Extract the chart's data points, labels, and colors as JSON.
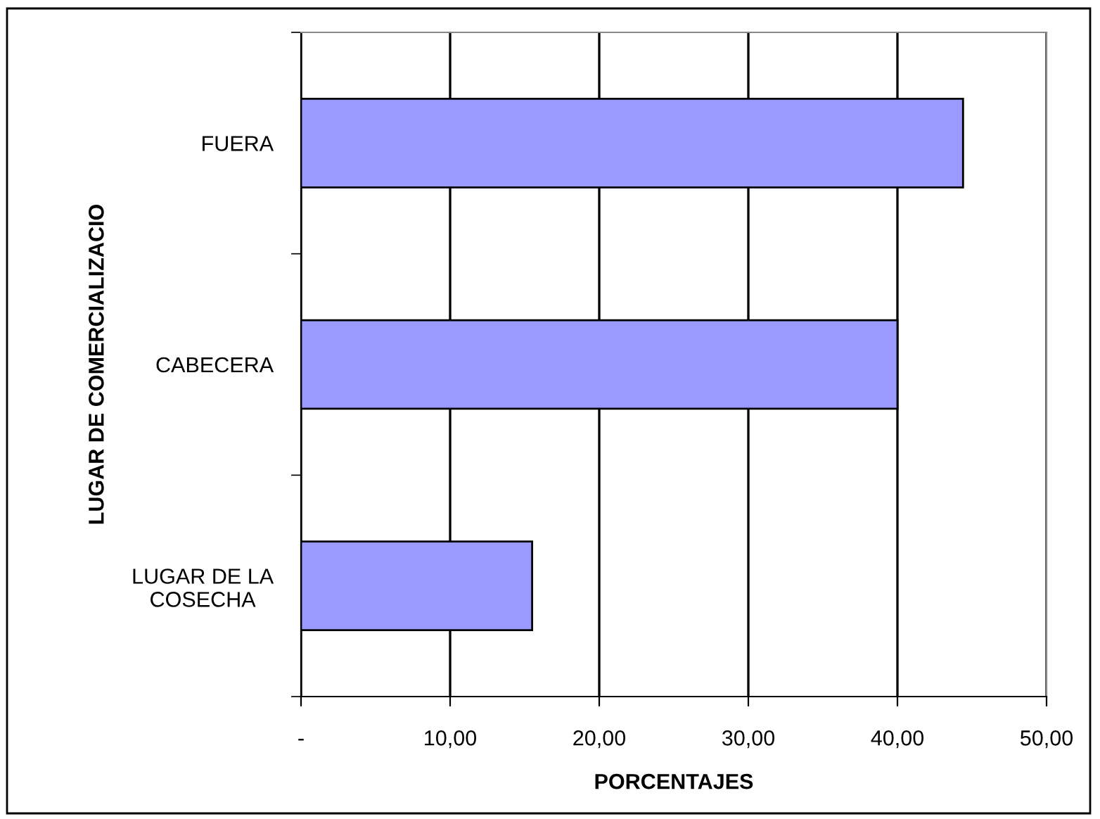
{
  "chart_data": {
    "type": "bar",
    "orientation": "horizontal",
    "xlabel": "PORCENTAJES",
    "ylabel": "LUGAR DE COMERCIALIZACIO",
    "categories": [
      "FUERA",
      "CABECERA",
      "LUGAR DE LA\nCOSECHA"
    ],
    "values": [
      44.4,
      40.0,
      15.5
    ],
    "color": "#9999ff",
    "xlim": [
      0,
      50
    ],
    "xticks": [
      {
        "value": 0,
        "label": "-"
      },
      {
        "value": 10,
        "label": "10,00"
      },
      {
        "value": 20,
        "label": "20,00"
      },
      {
        "value": 30,
        "label": "30,00"
      },
      {
        "value": 40,
        "label": "40,00"
      },
      {
        "value": 50,
        "label": "50,00"
      }
    ],
    "grid": "x"
  }
}
